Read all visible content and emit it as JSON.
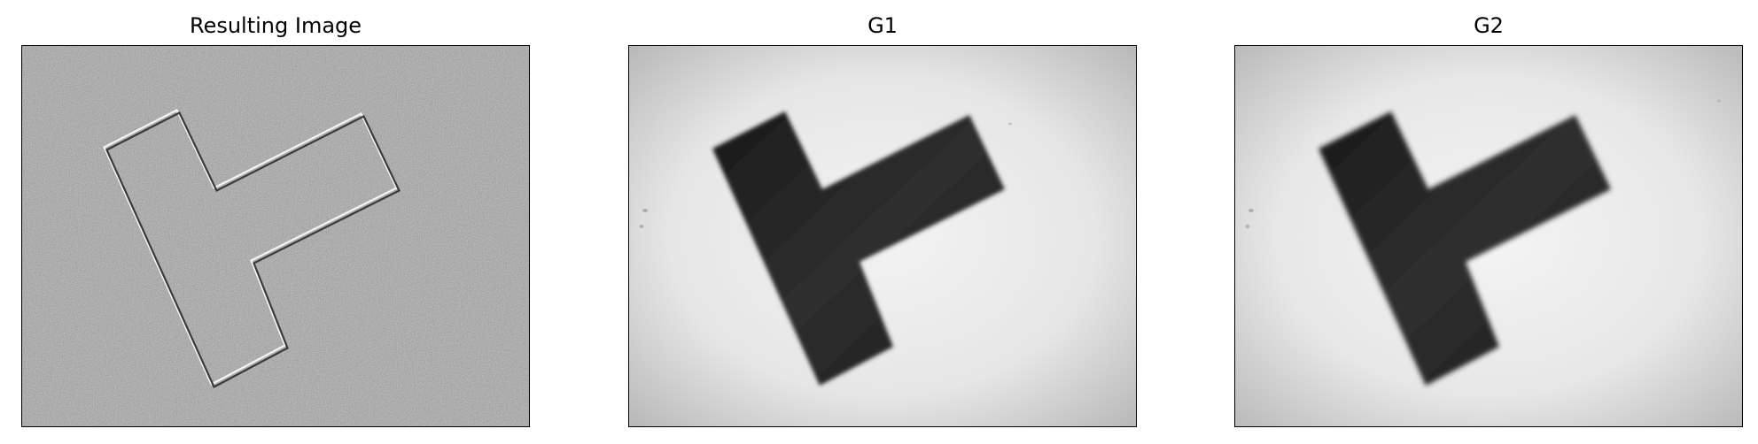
{
  "panels": [
    {
      "title": "Resulting Image"
    },
    {
      "title": "G1"
    },
    {
      "title": "G2"
    }
  ],
  "colors": {
    "background": "#ffffff",
    "diff_gray": "#a3a3a3",
    "shape_dark": "#222222",
    "bright_center": "#f2f2f2",
    "dim_corner": "#bcbcbc"
  }
}
